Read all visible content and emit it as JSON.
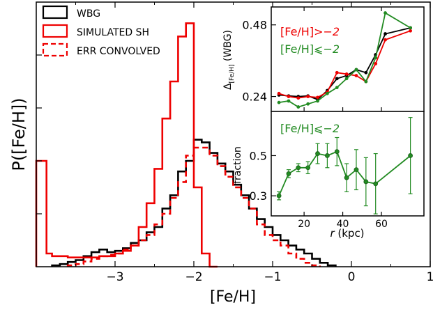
{
  "chart_data": [
    {
      "type": "histogram",
      "xlabel": "[Fe/H]",
      "ylabel": "P([Fe/H])",
      "xlim": [
        -4.0,
        1.0
      ],
      "ylim": [
        0,
        1.0
      ],
      "xticks": [
        -3,
        -2,
        -1,
        0,
        1
      ],
      "xtick_labels": [
        "−3",
        "−2",
        "−1",
        "0",
        "1"
      ],
      "legend_position": "top-left",
      "legend": [
        "WBG",
        "SIMULATED SH",
        "ERR CONVOLVED"
      ],
      "series": [
        {
          "name": "WBG",
          "color": "#000000",
          "style": "solid-step",
          "edges": [
            -3.8,
            -3.7,
            -3.6,
            -3.5,
            -3.4,
            -3.3,
            -3.2,
            -3.1,
            -3.0,
            -2.9,
            -2.8,
            -2.7,
            -2.6,
            -2.5,
            -2.4,
            -2.3,
            -2.2,
            -2.1,
            -2.0,
            -1.9,
            -1.8,
            -1.7,
            -1.6,
            -1.5,
            -1.4,
            -1.3,
            -1.2,
            -1.1,
            -1.0,
            -0.9,
            -0.8,
            -0.7,
            -0.6,
            -0.5,
            -0.4,
            -0.3,
            -0.2
          ],
          "values": [
            0.005,
            0.01,
            0.018,
            0.025,
            0.04,
            0.055,
            0.065,
            0.055,
            0.06,
            0.07,
            0.09,
            0.1,
            0.13,
            0.15,
            0.22,
            0.27,
            0.36,
            0.4,
            0.48,
            0.47,
            0.43,
            0.39,
            0.36,
            0.31,
            0.27,
            0.22,
            0.18,
            0.15,
            0.12,
            0.1,
            0.08,
            0.065,
            0.05,
            0.03,
            0.015,
            0.005
          ]
        },
        {
          "name": "SIMULATED SH",
          "color": "#ee0000",
          "style": "solid-step",
          "edges": [
            -4.0,
            -3.87,
            -3.8,
            -3.6,
            -3.4,
            -3.2,
            -3.0,
            -2.9,
            -2.8,
            -2.7,
            -2.6,
            -2.5,
            -2.4,
            -2.3,
            -2.2,
            -2.1,
            -2.0,
            -1.9,
            -1.8,
            -1.7
          ],
          "values": [
            0.4,
            0.05,
            0.04,
            0.035,
            0.035,
            0.04,
            0.05,
            0.06,
            0.08,
            0.15,
            0.24,
            0.37,
            0.56,
            0.7,
            0.87,
            0.92,
            0.3,
            0.05,
            0.0
          ]
        },
        {
          "name": "ERR CONVOLVED",
          "color": "#ee0000",
          "style": "dashed-step",
          "edges": [
            -3.6,
            -3.5,
            -3.4,
            -3.3,
            -3.2,
            -3.1,
            -3.0,
            -2.9,
            -2.8,
            -2.7,
            -2.6,
            -2.5,
            -2.4,
            -2.3,
            -2.2,
            -2.1,
            -2.0,
            -1.9,
            -1.8,
            -1.7,
            -1.6,
            -1.5,
            -1.4,
            -1.3,
            -1.2,
            -1.1,
            -1.0,
            -0.9,
            -0.8,
            -0.7,
            -0.6,
            -0.5,
            -0.4
          ],
          "values": [
            0.005,
            0.01,
            0.02,
            0.03,
            0.04,
            0.045,
            0.05,
            0.065,
            0.08,
            0.1,
            0.12,
            0.16,
            0.2,
            0.26,
            0.32,
            0.42,
            0.45,
            0.45,
            0.42,
            0.38,
            0.34,
            0.3,
            0.26,
            0.22,
            0.16,
            0.12,
            0.1,
            0.08,
            0.05,
            0.03,
            0.015,
            0.005
          ]
        }
      ]
    },
    {
      "type": "line",
      "xlabel": "",
      "ylabel": "Δ[Fe/H] (WBG)",
      "ylabel_parts": [
        "Δ",
        "[Fe/H]",
        " (WBG)"
      ],
      "xlim": [
        3,
        82
      ],
      "ylim": [
        0.19,
        0.54
      ],
      "yticks": [
        0.24,
        0.48
      ],
      "ytick_labels": [
        "0.24",
        "0.48"
      ],
      "annotations": [
        "[Fe/H]",
        ">−2",
        "[Fe/H]",
        "⩽−2"
      ],
      "series": [
        {
          "name": "all",
          "color": "#000000",
          "x": [
            7,
            12,
            17,
            22,
            27,
            32,
            37,
            42,
            47,
            52,
            57,
            62,
            75
          ],
          "y": [
            0.245,
            0.242,
            0.24,
            0.242,
            0.23,
            0.26,
            0.3,
            0.31,
            0.33,
            0.32,
            0.38,
            0.45,
            0.47
          ]
        },
        {
          "name": "[Fe/H] > −2",
          "color": "#ee0000",
          "x": [
            7,
            12,
            17,
            22,
            27,
            32,
            37,
            42,
            47,
            52,
            57,
            62,
            75
          ],
          "y": [
            0.25,
            0.24,
            0.235,
            0.24,
            0.237,
            0.255,
            0.32,
            0.315,
            0.31,
            0.29,
            0.35,
            0.43,
            0.46
          ]
        },
        {
          "name": "[Fe/H] ⩽ −2",
          "color": "#228b22",
          "x": [
            7,
            12,
            17,
            22,
            27,
            32,
            37,
            42,
            47,
            52,
            57,
            62,
            75
          ],
          "y": [
            0.22,
            0.225,
            0.205,
            0.215,
            0.225,
            0.25,
            0.27,
            0.3,
            0.33,
            0.29,
            0.37,
            0.52,
            0.47
          ]
        }
      ]
    },
    {
      "type": "scatter",
      "xlabel": "r (kpc)",
      "xlabel_parts": [
        "r",
        " (kpc)"
      ],
      "ylabel": "fraction",
      "xlim": [
        3,
        82
      ],
      "ylim": [
        0.2,
        0.72
      ],
      "yticks": [
        0.3,
        0.5
      ],
      "ytick_labels": [
        "0.3",
        "0.5"
      ],
      "xticks": [
        20,
        40,
        60
      ],
      "xtick_labels": [
        "20",
        "40",
        "60"
      ],
      "annotations": [
        "[Fe/H]",
        "⩽−2"
      ],
      "series": [
        {
          "name": "[Fe/H] ⩽ −2",
          "color": "#228b22",
          "x": [
            7,
            12,
            17,
            22,
            27,
            32,
            37,
            42,
            47,
            52,
            57,
            75
          ],
          "y": [
            0.3,
            0.41,
            0.44,
            0.44,
            0.51,
            0.5,
            0.52,
            0.39,
            0.43,
            0.37,
            0.36,
            0.5
          ],
          "err": [
            0.02,
            0.02,
            0.02,
            0.03,
            0.05,
            0.06,
            0.07,
            0.07,
            0.1,
            0.12,
            0.15,
            0.19
          ]
        }
      ]
    }
  ]
}
